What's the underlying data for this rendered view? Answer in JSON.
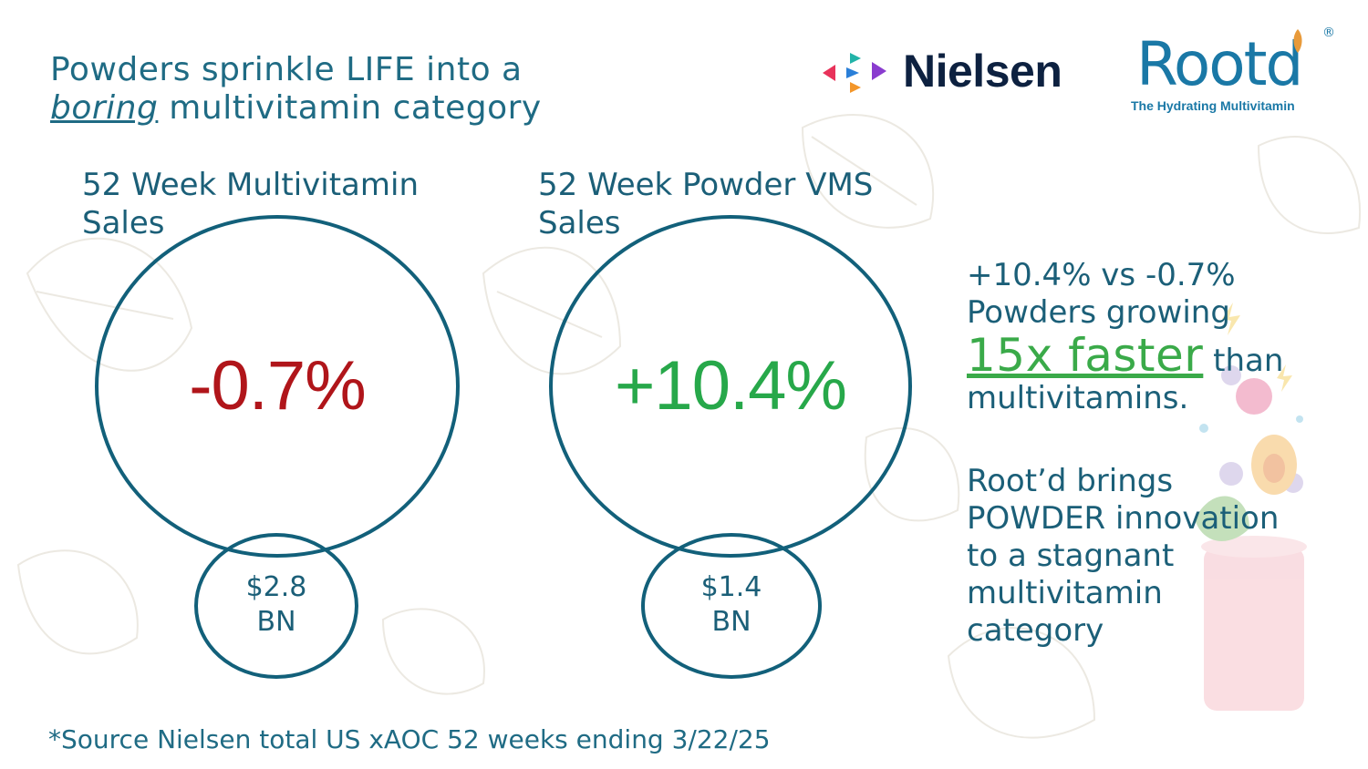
{
  "title": {
    "line1": "Powders sprinkle LIFE into a",
    "emphasis": "boring",
    "line2_rest": " multivitamin category"
  },
  "logos": {
    "nielsen": "Nielsen",
    "rootd": "Rootd",
    "rootd_registered": "®",
    "rootd_tagline": "The Hydrating Multivitamin"
  },
  "left_panel": {
    "heading_line1": "52 Week Multivitamin",
    "heading_line2": "Sales",
    "growth": "-0.7%",
    "amount_line1": "$2.8",
    "amount_line2": "BN"
  },
  "right_panel": {
    "heading_line1": "52 Week Powder VMS",
    "heading_line2": "Sales",
    "growth": "+10.4%",
    "amount_line1": "$1.4",
    "amount_line2": "BN"
  },
  "callout": {
    "comparison": "+10.4% vs -0.7%",
    "line2": "Powders growing",
    "highlight": "15x faster",
    "after_highlight": " than",
    "line4": "multivitamins.",
    "p2_line1": "Root’d brings",
    "p2_line2": "POWDER innovation",
    "p2_line3": "to a stagnant",
    "p2_line4": "multivitamin",
    "p2_line5": "category"
  },
  "footnote": "*Source Nielsen total US xAOC 52 weeks ending 3/22/25",
  "colors": {
    "negative": "#b0151a",
    "positive": "#27a84a",
    "ring": "#12607a",
    "text": "#1b5f78",
    "highlight": "#3aaa49"
  }
}
